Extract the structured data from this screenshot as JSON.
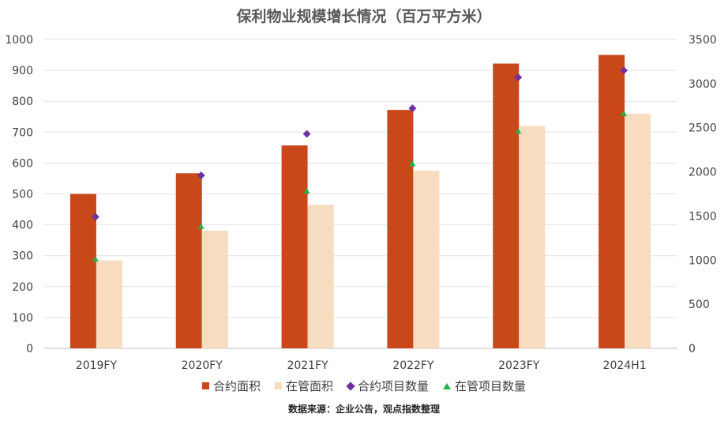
{
  "chart_data": {
    "type": "bar",
    "title": "保利物业规模增长情况（百万平方米）",
    "categories": [
      "2019FY",
      "2020FY",
      "2021FY",
      "2022FY",
      "2023FY",
      "2024H1"
    ],
    "series": [
      {
        "name": "合约面积",
        "axis": "left",
        "kind": "bar",
        "color": "#c9481a",
        "values": [
          500,
          567,
          657,
          772,
          922,
          950
        ]
      },
      {
        "name": "在管面积",
        "axis": "left",
        "kind": "bar",
        "color": "#f7dcc0",
        "values": [
          285,
          381,
          465,
          575,
          720,
          760
        ]
      },
      {
        "name": "合约项目数量",
        "axis": "right",
        "kind": "diamond",
        "color": "#7030a0",
        "values": [
          1490,
          1960,
          2430,
          2720,
          3070,
          3150
        ]
      },
      {
        "name": "在管项目数量",
        "axis": "right",
        "kind": "triangle",
        "color": "#21b24b",
        "values": [
          1010,
          1380,
          1780,
          2090,
          2460,
          2660
        ]
      }
    ],
    "y_left": {
      "min": 0,
      "max": 1000,
      "step": 100,
      "ticks": [
        "0",
        "100",
        "200",
        "300",
        "400",
        "500",
        "600",
        "700",
        "800",
        "900",
        "1000"
      ]
    },
    "y_right": {
      "min": 0,
      "max": 3500,
      "step": 500,
      "ticks": [
        "0",
        "500",
        "1000",
        "1500",
        "2000",
        "2500",
        "3000",
        "3500"
      ]
    },
    "grid": true,
    "legend_position": "bottom",
    "source_note": "数据来源：企业公告，观点指数整理"
  }
}
